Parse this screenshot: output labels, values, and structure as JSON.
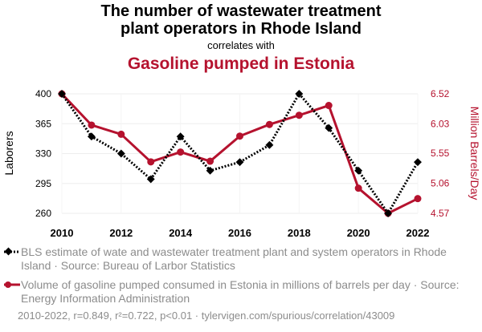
{
  "header": {
    "title_line1": "The number of wastewater treatment",
    "title_line2": "plant operators in Rhode Island",
    "correlates": "correlates with",
    "subtitle": "Gasoline pumped in Estonia"
  },
  "colors": {
    "series1": "#000000",
    "series2": "#b5122e",
    "grid": "#eeeeee",
    "muted": "#8c8c8c"
  },
  "chart_data": {
    "type": "line",
    "x": [
      2010,
      2011,
      2012,
      2013,
      2014,
      2015,
      2016,
      2017,
      2018,
      2019,
      2020,
      2021,
      2022
    ],
    "x_ticks": [
      "2010",
      "2012",
      "2014",
      "2016",
      "2018",
      "2020",
      "2022"
    ],
    "left_axis": {
      "label": "Laborers",
      "ticks": [
        "400",
        "365",
        "330",
        "295",
        "260"
      ],
      "range": [
        260,
        400
      ]
    },
    "right_axis": {
      "label": "Million Barrels/Day",
      "ticks": [
        "6.52",
        "6.03",
        "5.55",
        "5.06",
        "4.57"
      ],
      "range": [
        4.57,
        6.52
      ]
    },
    "series": [
      {
        "name": "Rhode Island wastewater treatment plant operators",
        "axis": "left",
        "style": "dotted",
        "marker": "diamond",
        "values": [
          400,
          350,
          330,
          300,
          350,
          310,
          320,
          340,
          400,
          360,
          310,
          260,
          320
        ]
      },
      {
        "name": "Estonia gasoline pumped",
        "axis": "right",
        "style": "solid",
        "marker": "circle",
        "values": [
          6.52,
          6.01,
          5.86,
          5.41,
          5.57,
          5.42,
          5.83,
          6.02,
          6.17,
          6.33,
          4.98,
          4.57,
          4.81
        ]
      }
    ]
  },
  "legend": {
    "series1": "BLS estimate of wate and wastewater treatment plant and system operators in Rhode Island · Source: Bureau of Larbor Statistics",
    "series2": "Volume of gasoline pumped consumed in Estonia in millions of barrels per day · Source: Energy Information Administration"
  },
  "footer": "2010-2022, r=0.849, r²=0.722, p<0.01 · tylervigen.com/spurious/correlation/43009"
}
